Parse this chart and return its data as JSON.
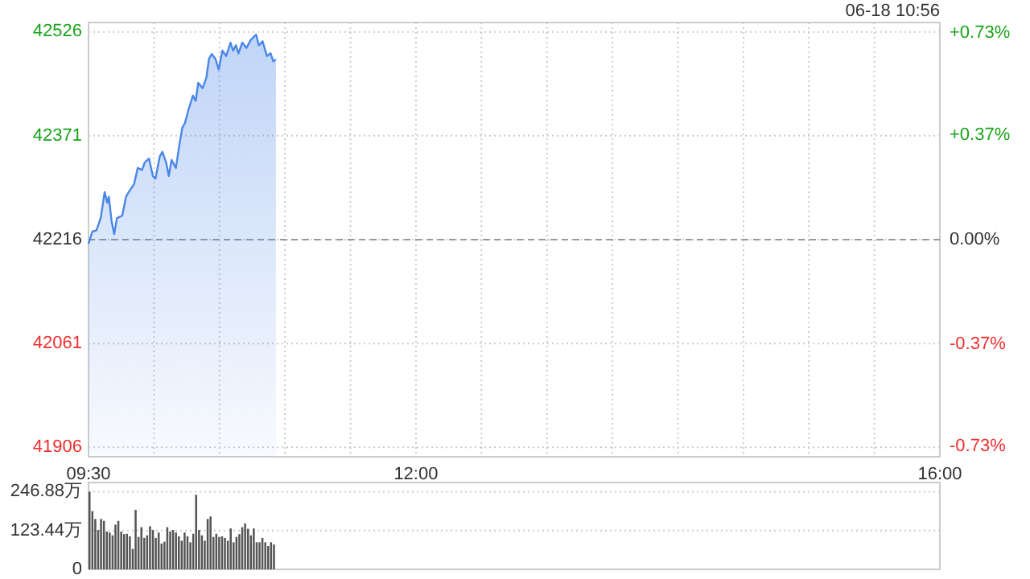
{
  "chart_data": [
    {
      "type": "area",
      "color": "#4a86e8",
      "annotations": [
        "06-18 10:56"
      ],
      "x": [
        9.5,
        9.529,
        9.561,
        9.594,
        9.623,
        9.643,
        9.655,
        9.676,
        9.696,
        9.717,
        9.758,
        9.786,
        9.807,
        9.848,
        9.876,
        9.909,
        9.929,
        9.962,
        9.991,
        10.011,
        10.044,
        10.064,
        10.093,
        10.113,
        10.134,
        10.167,
        10.195,
        10.216,
        10.236,
        10.265,
        10.297,
        10.318,
        10.338,
        10.371,
        10.4,
        10.42,
        10.441,
        10.469,
        10.494,
        10.522,
        10.551,
        10.584,
        10.604,
        10.625,
        10.645,
        10.674,
        10.706,
        10.739,
        10.759,
        10.78,
        10.8,
        10.829,
        10.862,
        10.89,
        10.911,
        10.931
      ],
      "values": [
        42210,
        42228,
        42230,
        42249,
        42287,
        42271,
        42280,
        42244,
        42224,
        42248,
        42252,
        42280,
        42287,
        42299,
        42323,
        42320,
        42331,
        42337,
        42311,
        42307,
        42340,
        42347,
        42331,
        42311,
        42335,
        42323,
        42359,
        42383,
        42390,
        42411,
        42431,
        42423,
        42450,
        42442,
        42458,
        42486,
        42493,
        42486,
        42470,
        42498,
        42490,
        42510,
        42498,
        42506,
        42494,
        42510,
        42502,
        42514,
        42518,
        42522,
        42506,
        42512,
        42490,
        42494,
        42482,
        42485
      ],
      "xlim": [
        9.5,
        16
      ],
      "xticks": [
        {
          "value": 9.5,
          "label": "09:30"
        },
        {
          "value": 10,
          "label": null
        },
        {
          "value": 10.5,
          "label": null
        },
        {
          "value": 11,
          "label": null
        },
        {
          "value": 11.5,
          "label": null
        },
        {
          "value": 12,
          "label": "12:00"
        },
        {
          "value": 12.5,
          "label": null
        },
        {
          "value": 13,
          "label": null
        },
        {
          "value": 13.5,
          "label": null
        },
        {
          "value": 14,
          "label": null
        },
        {
          "value": 14.5,
          "label": null
        },
        {
          "value": 15,
          "label": null
        },
        {
          "value": 15.5,
          "label": null
        },
        {
          "value": 16,
          "label": "16:00"
        }
      ],
      "ylim": [
        41892,
        42540
      ],
      "yticks": [
        41906,
        42061,
        42216,
        42371,
        42526
      ],
      "y2lim": [
        -0.767,
        0.767
      ],
      "y2ticks": [
        {
          "value": -0.73,
          "label": "-0.73%"
        },
        {
          "value": -0.37,
          "label": "-0.37%"
        },
        {
          "value": 0,
          "label": "0.00%"
        },
        {
          "value": 0.37,
          "label": "+0.37%"
        },
        {
          "value": 0.73,
          "label": "+0.73%"
        }
      ],
      "ref_lines": [
        {
          "axis": "y",
          "value": 42216,
          "color": "#999999",
          "line_style": "dashed"
        }
      ],
      "grid": true
    },
    {
      "type": "bar",
      "color": "#555555",
      "x": [
        9.5,
        9.522,
        9.544,
        9.566,
        9.588,
        9.61,
        9.632,
        9.654,
        9.676,
        9.698,
        9.72,
        9.742,
        9.764,
        9.786,
        9.808,
        9.83,
        9.852,
        9.874,
        9.896,
        9.918,
        9.94,
        9.962,
        9.984,
        10.006,
        10.028,
        10.05,
        10.072,
        10.094,
        10.116,
        10.138,
        10.16,
        10.182,
        10.204,
        10.226,
        10.248,
        10.27,
        10.292,
        10.314,
        10.336,
        10.358,
        10.38,
        10.402,
        10.424,
        10.446,
        10.468,
        10.49,
        10.512,
        10.534,
        10.556,
        10.578,
        10.6,
        10.622,
        10.644,
        10.666,
        10.688,
        10.71,
        10.732,
        10.754,
        10.776,
        10.798,
        10.82,
        10.842,
        10.864,
        10.886,
        10.908
      ],
      "values": [
        246.88,
        185,
        160,
        125,
        160,
        154,
        120,
        117,
        108,
        142,
        154,
        120,
        112,
        113,
        105,
        65,
        189,
        103,
        134,
        100,
        108,
        137,
        125,
        100,
        117,
        82,
        88,
        134,
        120,
        125,
        117,
        105,
        91,
        117,
        105,
        86,
        113,
        237,
        125,
        108,
        91,
        160,
        168,
        103,
        113,
        103,
        105,
        100,
        91,
        130,
        86,
        103,
        112,
        134,
        146,
        129,
        108,
        130,
        86,
        86,
        100,
        86,
        74,
        86,
        79
      ],
      "xlim": [
        9.5,
        16
      ],
      "ylim": [
        0,
        276
      ],
      "yticks": [
        0,
        {
          "value": 123.44,
          "label": "123.44万"
        },
        {
          "value": 246.88,
          "label": "246.88万"
        }
      ],
      "tick_labels": "y",
      "grid": "y"
    }
  ]
}
